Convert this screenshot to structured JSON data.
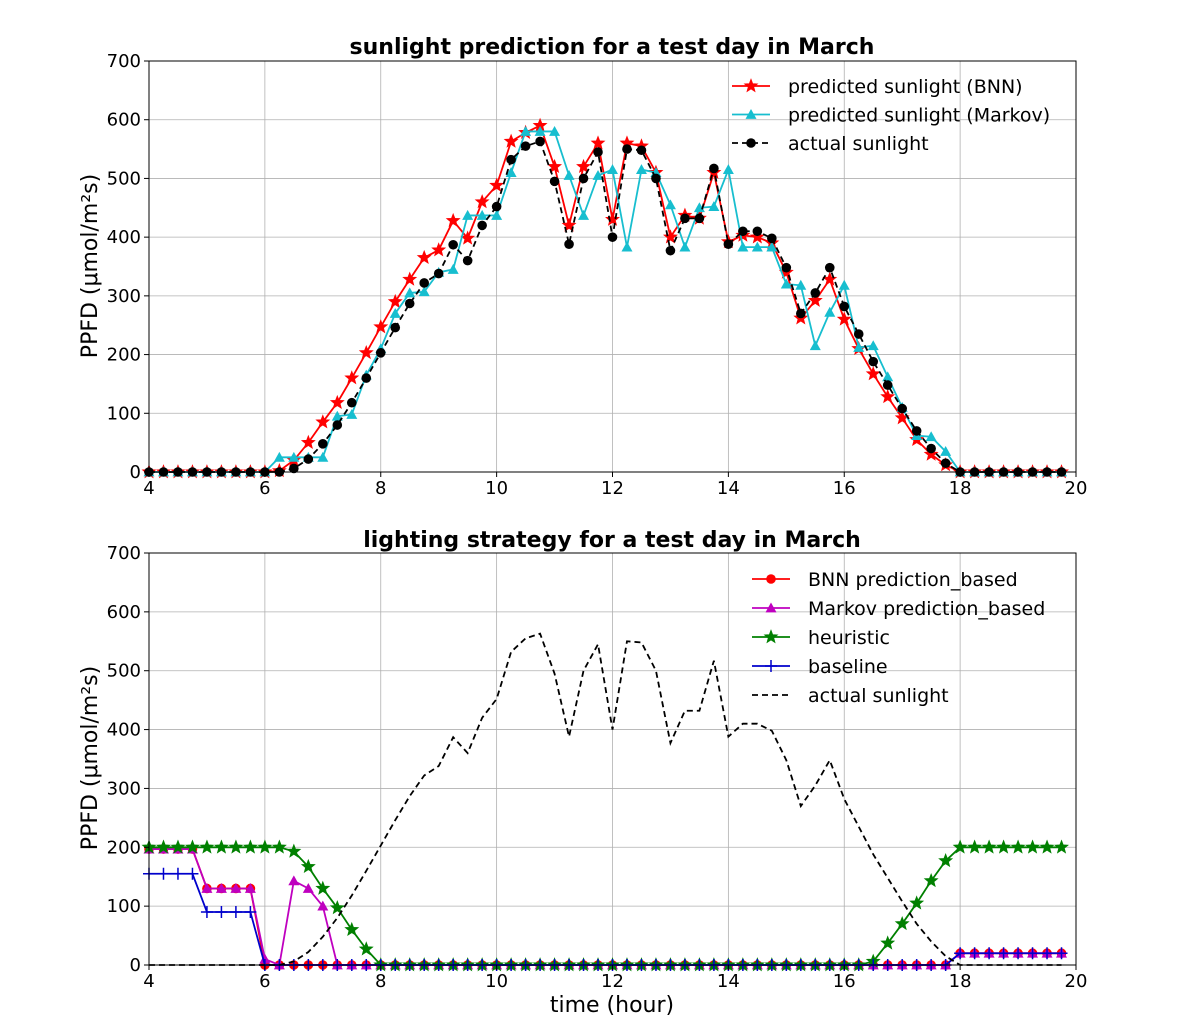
{
  "chart_data": [
    {
      "type": "line",
      "title": "sunlight prediction for a test day in March",
      "xlabel": "",
      "ylabel": "PPFD (μmol/m²s)",
      "xlim": [
        4,
        20
      ],
      "ylim": [
        0,
        700
      ],
      "xticks": [
        "4",
        "6",
        "8",
        "10",
        "12",
        "14",
        "16",
        "18",
        "20"
      ],
      "yticks": [
        "0",
        "100",
        "200",
        "300",
        "400",
        "500",
        "600",
        "700"
      ],
      "grid": true,
      "legend": "top-right",
      "x": [
        4.0,
        4.25,
        4.5,
        4.75,
        5.0,
        5.25,
        5.5,
        5.75,
        6.0,
        6.25,
        6.5,
        6.75,
        7.0,
        7.25,
        7.5,
        7.75,
        8.0,
        8.25,
        8.5,
        8.75,
        9.0,
        9.25,
        9.5,
        9.75,
        10.0,
        10.25,
        10.5,
        10.75,
        11.0,
        11.25,
        11.5,
        11.75,
        12.0,
        12.25,
        12.5,
        12.75,
        13.0,
        13.25,
        13.5,
        13.75,
        14.0,
        14.25,
        14.5,
        14.75,
        15.0,
        15.25,
        15.5,
        15.75,
        16.0,
        16.25,
        16.5,
        16.75,
        17.0,
        17.25,
        17.5,
        17.75,
        18.0,
        18.25,
        18.5,
        18.75,
        19.0,
        19.25,
        19.5,
        19.75
      ],
      "series": [
        {
          "name": "predicted sunlight (BNN)",
          "color": "#ff0000",
          "marker": "star",
          "dash": "solid",
          "values": [
            0,
            0,
            0,
            0,
            0,
            0,
            0,
            0,
            0,
            2,
            20,
            50,
            85,
            118,
            160,
            203,
            247,
            290,
            328,
            365,
            378,
            428,
            398,
            460,
            488,
            563,
            578,
            590,
            520,
            420,
            520,
            560,
            430,
            560,
            555,
            510,
            400,
            437,
            432,
            510,
            392,
            403,
            400,
            390,
            340,
            262,
            292,
            328,
            260,
            210,
            167,
            128,
            92,
            55,
            30,
            12,
            0,
            0,
            0,
            0,
            0,
            0,
            0,
            0
          ]
        },
        {
          "name": "predicted sunlight (Markov)",
          "color": "#17becf",
          "marker": "triangle",
          "dash": "solid",
          "values": [
            0,
            0,
            0,
            0,
            0,
            0,
            0,
            0,
            0,
            25,
            25,
            25,
            25,
            95,
            98,
            165,
            210,
            270,
            305,
            307,
            340,
            345,
            437,
            437,
            437,
            510,
            580,
            580,
            580,
            505,
            437,
            505,
            515,
            383,
            515,
            510,
            455,
            383,
            450,
            452,
            515,
            383,
            383,
            383,
            320,
            318,
            215,
            272,
            318,
            212,
            215,
            162,
            110,
            62,
            60,
            35,
            0,
            0,
            0,
            0,
            0,
            0,
            0,
            0
          ]
        },
        {
          "name": "actual sunlight",
          "color": "#000000",
          "marker": "circle",
          "dash": "dashed",
          "values": [
            0,
            0,
            0,
            0,
            0,
            0,
            0,
            0,
            0,
            0,
            6,
            22,
            48,
            80,
            118,
            160,
            203,
            246,
            287,
            322,
            338,
            387,
            360,
            420,
            452,
            532,
            555,
            563,
            495,
            388,
            500,
            545,
            400,
            550,
            548,
            500,
            377,
            432,
            432,
            517,
            388,
            410,
            410,
            398,
            348,
            270,
            305,
            348,
            282,
            235,
            188,
            148,
            108,
            70,
            40,
            15,
            0,
            0,
            0,
            0,
            0,
            0,
            0,
            0
          ]
        }
      ]
    },
    {
      "type": "line",
      "title": "lighting strategy for a test day in March",
      "xlabel": "time (hour)",
      "ylabel": "PPFD (μmol/m²s)",
      "xlim": [
        4,
        20
      ],
      "ylim": [
        0,
        700
      ],
      "xticks": [
        "4",
        "6",
        "8",
        "10",
        "12",
        "14",
        "16",
        "18",
        "20"
      ],
      "yticks": [
        "0",
        "100",
        "200",
        "300",
        "400",
        "500",
        "600",
        "700"
      ],
      "grid": true,
      "legend": "top-right",
      "x": [
        4.0,
        4.25,
        4.5,
        4.75,
        5.0,
        5.25,
        5.5,
        5.75,
        6.0,
        6.25,
        6.5,
        6.75,
        7.0,
        7.25,
        7.5,
        7.75,
        8.0,
        8.25,
        8.5,
        8.75,
        9.0,
        9.25,
        9.5,
        9.75,
        10.0,
        10.25,
        10.5,
        10.75,
        11.0,
        11.25,
        11.5,
        11.75,
        12.0,
        12.25,
        12.5,
        12.75,
        13.0,
        13.25,
        13.5,
        13.75,
        14.0,
        14.25,
        14.5,
        14.75,
        15.0,
        15.25,
        15.5,
        15.75,
        16.0,
        16.25,
        16.5,
        16.75,
        17.0,
        17.25,
        17.5,
        17.75,
        18.0,
        18.25,
        18.5,
        18.75,
        19.0,
        19.25,
        19.5,
        19.75
      ],
      "series": [
        {
          "name": "BNN prediction_based",
          "color": "#ff0000",
          "marker": "circle",
          "dash": "solid",
          "values": [
            197,
            197,
            197,
            197,
            130,
            130,
            130,
            130,
            0,
            0,
            0,
            0,
            0,
            0,
            0,
            0,
            0,
            0,
            0,
            0,
            0,
            0,
            0,
            0,
            0,
            0,
            0,
            0,
            0,
            0,
            0,
            0,
            0,
            0,
            0,
            0,
            0,
            0,
            0,
            0,
            0,
            0,
            0,
            0,
            0,
            0,
            0,
            0,
            0,
            0,
            0,
            0,
            0,
            0,
            0,
            0,
            20,
            20,
            20,
            20,
            20,
            20,
            20,
            20
          ]
        },
        {
          "name": "Markov prediction_based",
          "color": "#bf00bf",
          "marker": "triangle",
          "dash": "solid",
          "values": [
            197,
            197,
            197,
            197,
            130,
            130,
            130,
            130,
            10,
            0,
            143,
            130,
            100,
            0,
            0,
            0,
            0,
            0,
            0,
            0,
            0,
            0,
            0,
            0,
            0,
            0,
            0,
            0,
            0,
            0,
            0,
            0,
            0,
            0,
            0,
            0,
            0,
            0,
            0,
            0,
            0,
            0,
            0,
            0,
            0,
            0,
            0,
            0,
            0,
            0,
            0,
            0,
            0,
            0,
            0,
            0,
            20,
            20,
            20,
            20,
            20,
            20,
            20,
            20
          ]
        },
        {
          "name": "heuristic",
          "color": "#008000",
          "marker": "star",
          "dash": "solid",
          "values": [
            200,
            200,
            200,
            200,
            200,
            200,
            200,
            200,
            200,
            200,
            193,
            167,
            130,
            97,
            60,
            27,
            0,
            0,
            0,
            0,
            0,
            0,
            0,
            0,
            0,
            0,
            0,
            0,
            0,
            0,
            0,
            0,
            0,
            0,
            0,
            0,
            0,
            0,
            0,
            0,
            0,
            0,
            0,
            0,
            0,
            0,
            0,
            0,
            0,
            0,
            6,
            37,
            70,
            105,
            143,
            177,
            200,
            200,
            200,
            200,
            200,
            200,
            200,
            200
          ]
        },
        {
          "name": "baseline",
          "color": "#0000cc",
          "marker": "plus",
          "dash": "solid",
          "values": [
            155,
            155,
            155,
            155,
            90,
            90,
            90,
            90,
            0,
            0,
            0,
            0,
            0,
            0,
            0,
            0,
            0,
            0,
            0,
            0,
            0,
            0,
            0,
            0,
            0,
            0,
            0,
            0,
            0,
            0,
            0,
            0,
            0,
            0,
            0,
            0,
            0,
            0,
            0,
            0,
            0,
            0,
            0,
            0,
            0,
            0,
            0,
            0,
            0,
            0,
            0,
            0,
            0,
            0,
            0,
            0,
            20,
            20,
            20,
            20,
            20,
            20,
            20,
            20
          ]
        },
        {
          "name": "actual sunlight",
          "color": "#000000",
          "marker": "none",
          "dash": "dashed",
          "values": [
            0,
            0,
            0,
            0,
            0,
            0,
            0,
            0,
            0,
            0,
            6,
            22,
            48,
            80,
            118,
            160,
            203,
            246,
            287,
            322,
            338,
            387,
            360,
            420,
            452,
            532,
            555,
            563,
            495,
            388,
            500,
            545,
            400,
            550,
            548,
            500,
            377,
            432,
            432,
            517,
            388,
            410,
            410,
            398,
            348,
            270,
            305,
            348,
            282,
            235,
            188,
            148,
            108,
            70,
            40,
            15,
            0,
            0,
            0,
            0,
            0,
            0,
            0,
            0
          ]
        }
      ]
    }
  ]
}
